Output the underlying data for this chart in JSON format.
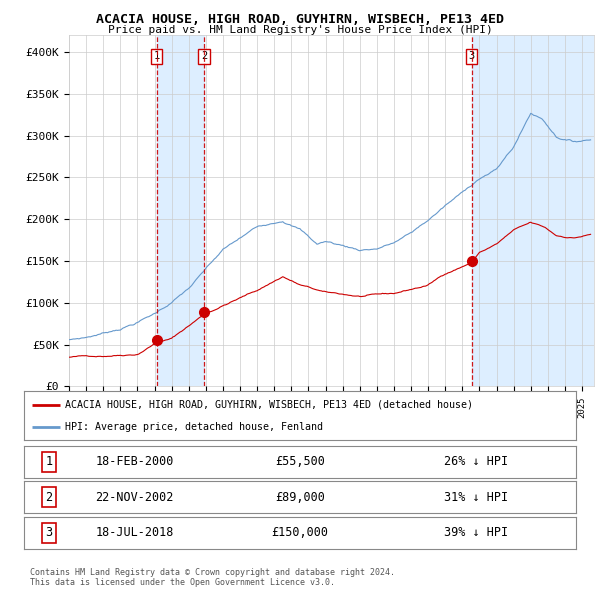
{
  "title": "ACACIA HOUSE, HIGH ROAD, GUYHIRN, WISBECH, PE13 4ED",
  "subtitle": "Price paid vs. HM Land Registry's House Price Index (HPI)",
  "property_label": "ACACIA HOUSE, HIGH ROAD, GUYHIRN, WISBECH, PE13 4ED (detached house)",
  "hpi_label": "HPI: Average price, detached house, Fenland",
  "sale_color": "#cc0000",
  "hpi_color": "#6699cc",
  "shade_color": "#ddeeff",
  "vline_color": "#cc0000",
  "background_color": "#ffffff",
  "grid_color": "#cccccc",
  "ylim": [
    0,
    420000
  ],
  "yticks": [
    0,
    50000,
    100000,
    150000,
    200000,
    250000,
    300000,
    350000,
    400000
  ],
  "ytick_labels": [
    "£0",
    "£50K",
    "£100K",
    "£150K",
    "£200K",
    "£250K",
    "£300K",
    "£350K",
    "£400K"
  ],
  "sales": [
    {
      "date": 2000.12,
      "price": 55500,
      "label": "1",
      "display_date": "18-FEB-2000",
      "display_price": "£55,500",
      "hpi_diff": "26% ↓ HPI"
    },
    {
      "date": 2002.9,
      "price": 89000,
      "label": "2",
      "display_date": "22-NOV-2002",
      "display_price": "£89,000",
      "hpi_diff": "31% ↓ HPI"
    },
    {
      "date": 2018.54,
      "price": 150000,
      "label": "3",
      "display_date": "18-JUL-2018",
      "display_price": "£150,000",
      "hpi_diff": "39% ↓ HPI"
    }
  ],
  "copyright_text": "Contains HM Land Registry data © Crown copyright and database right 2024.\nThis data is licensed under the Open Government Licence v3.0.",
  "xlim_start": 1995.0,
  "xlim_end": 2025.7
}
